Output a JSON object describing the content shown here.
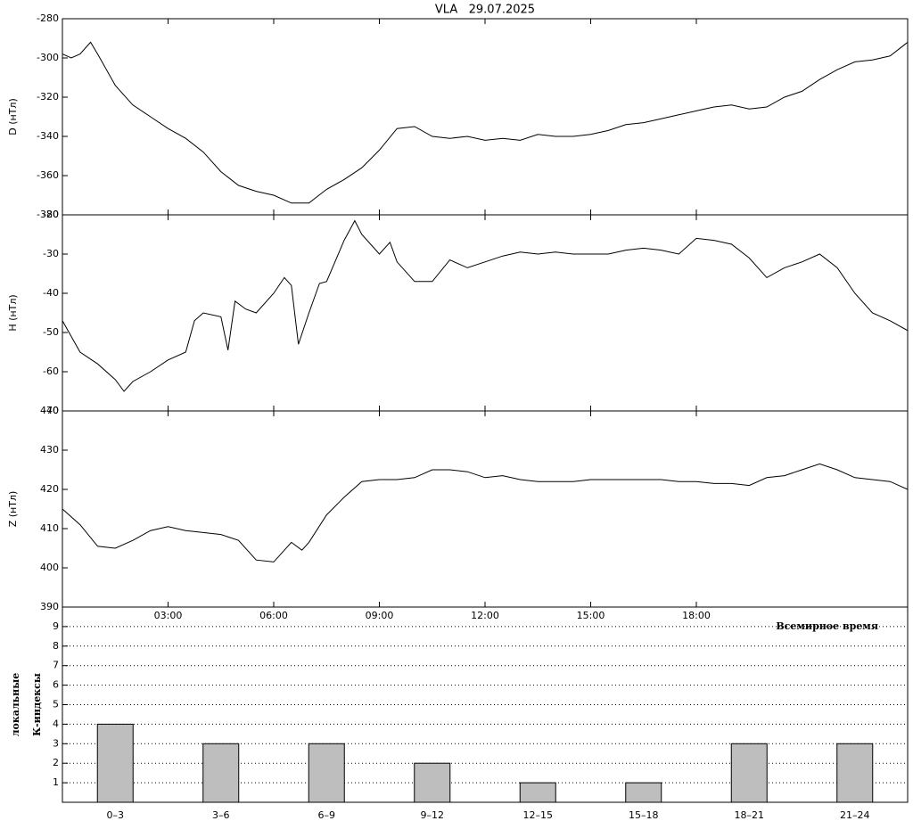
{
  "chart_data": [
    {
      "type": "line",
      "title": "VLA   29.07.2025",
      "ylabel": "D (нТл)",
      "color": "#000000",
      "xlim": [
        0,
        24
      ],
      "ylim": [
        -380,
        -280
      ],
      "yticks": [
        -380,
        -360,
        -340,
        -320,
        -300,
        -280
      ],
      "x": [
        0,
        0.25,
        0.5,
        0.8,
        1,
        1.5,
        2,
        2.5,
        3,
        3.5,
        4,
        4.5,
        5,
        5.5,
        6,
        6.5,
        7,
        7.5,
        8,
        8.5,
        9,
        9.5,
        10,
        10.5,
        11,
        11.5,
        12,
        12.5,
        13,
        13.5,
        14,
        14.5,
        15,
        15.5,
        16,
        16.5,
        17,
        17.5,
        18,
        18.5,
        19,
        19.5,
        20,
        20.5,
        21,
        21.5,
        22,
        22.5,
        23,
        23.5,
        24
      ],
      "values": [
        -298,
        -300,
        -298,
        -292,
        -298,
        -314,
        -324,
        -330,
        -336,
        -341,
        -348,
        -358,
        -365,
        -368,
        -370,
        -374,
        -374,
        -367,
        -362,
        -356,
        -347,
        -336,
        -335,
        -340,
        -341,
        -340,
        -342,
        -341,
        -342,
        -339,
        -340,
        -340,
        -339,
        -337,
        -334,
        -333,
        -331,
        -329,
        -327,
        -325,
        -324,
        -326,
        -325,
        -320,
        -317,
        -311,
        -306,
        -302,
        -301,
        -299,
        -292
      ]
    },
    {
      "type": "line",
      "ylabel": "H (нТл)",
      "color": "#000000",
      "xlim": [
        0,
        24
      ],
      "ylim": [
        -70,
        -20
      ],
      "yticks": [
        -70,
        -60,
        -50,
        -40,
        -30,
        -20
      ],
      "x": [
        0,
        0.5,
        1,
        1.5,
        1.75,
        2,
        2.5,
        3,
        3.5,
        3.75,
        4,
        4.5,
        4.7,
        4.9,
        5.2,
        5.5,
        6,
        6.3,
        6.5,
        6.7,
        7,
        7.3,
        7.5,
        8,
        8.3,
        8.5,
        9,
        9.3,
        9.5,
        10,
        10.5,
        11,
        11.5,
        12,
        12.5,
        13,
        13.5,
        14,
        14.5,
        15,
        15.5,
        16,
        16.5,
        17,
        17.5,
        18,
        18.5,
        19,
        19.5,
        20,
        20.5,
        21,
        21.5,
        22,
        22.5,
        23,
        23.5,
        24
      ],
      "values": [
        -47,
        -55,
        -58,
        -62,
        -65,
        -62.5,
        -60,
        -57,
        -55,
        -47,
        -45,
        -46,
        -54.5,
        -42,
        -44,
        -45,
        -40,
        -36,
        -38,
        -53,
        -45,
        -37.5,
        -37,
        -26.5,
        -21.5,
        -25,
        -30,
        -27,
        -32,
        -37,
        -37,
        -31.5,
        -33.5,
        -32,
        -30.5,
        -29.5,
        -30,
        -29.5,
        -30,
        -30,
        -30,
        -29,
        -28.5,
        -29,
        -30,
        -26,
        -26.5,
        -27.5,
        -31,
        -36,
        -33.5,
        -32,
        -30,
        -33.5,
        -40,
        -45,
        -47,
        -49.5
      ]
    },
    {
      "type": "line",
      "ylabel": "Z (нТл)",
      "xlabel": "Всемирное время",
      "color": "#000000",
      "xlim": [
        0,
        24
      ],
      "ylim": [
        390,
        440
      ],
      "yticks": [
        390,
        400,
        410,
        420,
        430,
        440
      ],
      "xticks": [
        {
          "value": 3,
          "label": "03:00"
        },
        {
          "value": 6,
          "label": "06:00"
        },
        {
          "value": 9,
          "label": "09:00"
        },
        {
          "value": 12,
          "label": "12:00"
        },
        {
          "value": 15,
          "label": "15:00"
        },
        {
          "value": 18,
          "label": "18:00"
        }
      ],
      "x": [
        0,
        0.5,
        1,
        1.5,
        2,
        2.5,
        3,
        3.5,
        4,
        4.5,
        5,
        5.5,
        6,
        6.5,
        6.8,
        7,
        7.5,
        8,
        8.5,
        9,
        9.5,
        10,
        10.5,
        11,
        11.5,
        12,
        12.5,
        13,
        13.5,
        14,
        14.5,
        15,
        15.5,
        16,
        16.5,
        17,
        17.5,
        18,
        18.5,
        19,
        19.5,
        20,
        20.5,
        21,
        21.5,
        22,
        22.5,
        23,
        23.5,
        24
      ],
      "values": [
        415,
        411,
        405.5,
        405,
        407,
        409.5,
        410.5,
        409.5,
        409,
        408.5,
        407,
        402,
        401.5,
        406.5,
        404.5,
        406.5,
        413.5,
        418,
        422,
        422.5,
        422.5,
        423,
        425,
        425,
        424.5,
        423,
        423.5,
        422.5,
        422,
        422,
        422,
        422.5,
        422.5,
        422.5,
        422.5,
        422.5,
        422,
        422,
        421.5,
        421.5,
        421,
        423,
        423.5,
        425,
        426.5,
        425,
        423,
        422.5,
        422,
        420
      ]
    },
    {
      "type": "bar",
      "ylabel": [
        "локальные",
        "К-индексы"
      ],
      "color": "#bebebe",
      "grid": true,
      "ylim": [
        0,
        10
      ],
      "yticks": [
        1,
        2,
        3,
        4,
        5,
        6,
        7,
        8,
        9
      ],
      "categories": [
        "0–3",
        "3–6",
        "6–9",
        "9–12",
        "12–15",
        "15–18",
        "18–21",
        "21–24"
      ],
      "values": [
        4,
        3,
        3,
        2,
        1,
        1,
        3,
        3
      ]
    }
  ]
}
